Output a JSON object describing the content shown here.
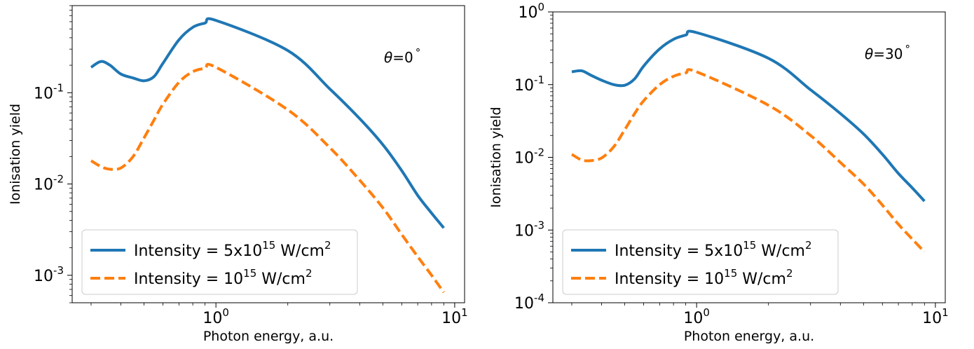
{
  "chart_data": [
    {
      "type": "line",
      "xlabel": "Photon energy, a.u.",
      "ylabel": "Ionisation yield",
      "xscale": "log",
      "yscale": "log",
      "xlim": [
        0.25,
        11
      ],
      "ylim": [
        0.0005,
        0.9
      ],
      "xticks": [
        {
          "base": "10",
          "exp": "0"
        },
        {
          "base": "10",
          "exp": "1"
        }
      ],
      "yticks": [
        {
          "base": "10",
          "exp": "-3"
        },
        {
          "base": "10",
          "exp": "-2"
        },
        {
          "base": "10",
          "exp": "-1"
        }
      ],
      "annotation": {
        "var": "θ",
        "eq": "=0",
        "unit": "°"
      },
      "legend_position": "lower-left",
      "series": [
        {
          "name": "Intensity = 5x10^15 W/cm^2",
          "label_parts": {
            "pre": "Intensity = 5x10",
            "exp": "15",
            "mid": " W/cm",
            "exp2": "2"
          },
          "color": "#1f77b4",
          "style": "solid",
          "x": [
            0.3,
            0.33,
            0.36,
            0.4,
            0.45,
            0.5,
            0.55,
            0.6,
            0.7,
            0.8,
            0.9,
            1.0,
            2.0,
            3.0,
            4.0,
            5.0,
            6.0,
            7.0,
            8.0,
            9.0
          ],
          "y": [
            0.19,
            0.22,
            0.2,
            0.16,
            0.145,
            0.135,
            0.15,
            0.21,
            0.38,
            0.52,
            0.58,
            0.62,
            0.29,
            0.11,
            0.052,
            0.027,
            0.014,
            0.0075,
            0.0048,
            0.0033
          ]
        },
        {
          "name": "Intensity = 10^15 W/cm^2",
          "label_parts": {
            "pre": "Intensity = 10",
            "exp": "15",
            "mid": " W/cm",
            "exp2": "2"
          },
          "color": "#ff7f0e",
          "style": "dashed",
          "x": [
            0.3,
            0.33,
            0.36,
            0.4,
            0.45,
            0.5,
            0.55,
            0.6,
            0.7,
            0.8,
            0.9,
            1.0,
            2.0,
            3.0,
            4.0,
            5.0,
            6.0,
            7.0,
            8.0,
            9.0
          ],
          "y": [
            0.018,
            0.0155,
            0.0145,
            0.015,
            0.02,
            0.032,
            0.05,
            0.075,
            0.13,
            0.17,
            0.185,
            0.19,
            0.065,
            0.025,
            0.011,
            0.0055,
            0.0028,
            0.0016,
            0.001,
            0.00065
          ]
        }
      ]
    },
    {
      "type": "line",
      "xlabel": "Photon energy, a.u.",
      "ylabel": "Ionisation yield",
      "xscale": "log",
      "yscale": "log",
      "xlim": [
        0.25,
        11
      ],
      "ylim": [
        0.0001,
        1
      ],
      "xticks": [
        {
          "base": "10",
          "exp": "0"
        },
        {
          "base": "10",
          "exp": "1"
        }
      ],
      "yticks": [
        {
          "base": "10",
          "exp": "-4"
        },
        {
          "base": "10",
          "exp": "-3"
        },
        {
          "base": "10",
          "exp": "-2"
        },
        {
          "base": "10",
          "exp": "-1"
        },
        {
          "base": "10",
          "exp": "0"
        }
      ],
      "annotation": {
        "var": "θ",
        "eq": "=30",
        "unit": "°"
      },
      "legend_position": "lower-left",
      "series": [
        {
          "name": "Intensity = 5x10^15 W/cm^2",
          "label_parts": {
            "pre": "Intensity = 5x10",
            "exp": "15",
            "mid": " W/cm",
            "exp2": "2"
          },
          "color": "#1f77b4",
          "style": "solid",
          "x": [
            0.3,
            0.33,
            0.36,
            0.4,
            0.45,
            0.5,
            0.55,
            0.6,
            0.7,
            0.8,
            0.9,
            1.0,
            2.0,
            3.0,
            4.0,
            5.0,
            6.0,
            7.0,
            8.0,
            9.0
          ],
          "y": [
            0.15,
            0.155,
            0.135,
            0.115,
            0.1,
            0.098,
            0.12,
            0.18,
            0.31,
            0.42,
            0.48,
            0.52,
            0.23,
            0.085,
            0.04,
            0.021,
            0.011,
            0.006,
            0.0038,
            0.0025
          ]
        },
        {
          "name": "Intensity = 10^15 W/cm^2",
          "label_parts": {
            "pre": "Intensity = 10",
            "exp": "15",
            "mid": " W/cm",
            "exp2": "2"
          },
          "color": "#ff7f0e",
          "style": "dashed",
          "x": [
            0.3,
            0.33,
            0.36,
            0.4,
            0.45,
            0.5,
            0.55,
            0.6,
            0.7,
            0.8,
            0.9,
            1.0,
            2.0,
            3.0,
            4.0,
            5.0,
            6.0,
            7.0,
            8.0,
            9.0
          ],
          "y": [
            0.011,
            0.0092,
            0.009,
            0.0098,
            0.014,
            0.024,
            0.04,
            0.06,
            0.1,
            0.13,
            0.145,
            0.15,
            0.052,
            0.02,
            0.0085,
            0.0043,
            0.0022,
            0.0012,
            0.00075,
            0.0005
          ]
        }
      ]
    }
  ]
}
